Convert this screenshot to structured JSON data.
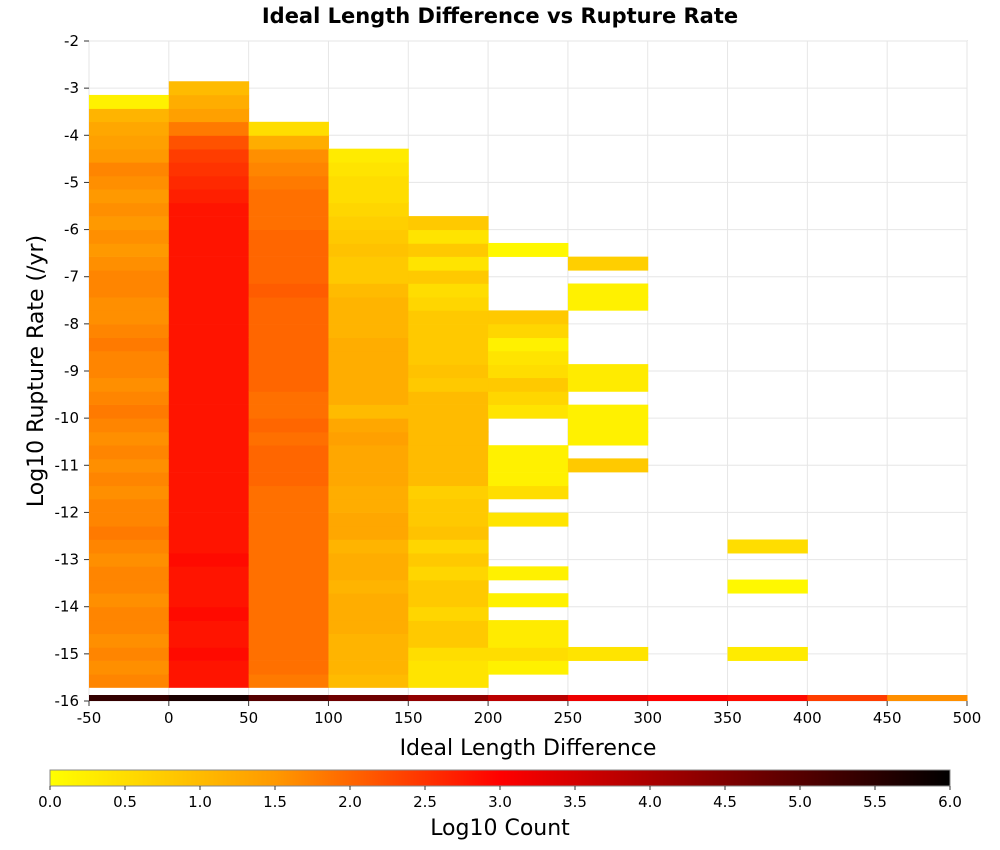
{
  "chart_data": {
    "type": "heatmap",
    "title": "Ideal Length Difference vs Rupture Rate",
    "xlabel": "Ideal Length Difference",
    "ylabel": "Log10 Rupture Rate (/yr)",
    "xlim": [
      -50,
      500
    ],
    "ylim": [
      -16,
      -2
    ],
    "x_ticks": [
      "-50",
      "0",
      "50",
      "100",
      "150",
      "200",
      "250",
      "300",
      "350",
      "400",
      "450",
      "500"
    ],
    "y_ticks": [
      "-2",
      "-3",
      "-4",
      "-5",
      "-6",
      "-7",
      "-8",
      "-9",
      "-10",
      "-11",
      "-12",
      "-13",
      "-14",
      "-15",
      "-16"
    ],
    "grid": true,
    "colorbar": {
      "label": "Log10 Count",
      "range": [
        0,
        6
      ],
      "ticks": [
        "0.0",
        "0.5",
        "1.0",
        "1.5",
        "2.0",
        "2.5",
        "3.0",
        "3.5",
        "4.0",
        "4.5",
        "5.0",
        "5.5",
        "6.0"
      ],
      "colors": [
        "#ffff00",
        "#ff9900",
        "#ff0000",
        "#800000",
        "#000000"
      ],
      "placement": "bottom"
    },
    "bin_width_x": 50,
    "bin_height_y": 0.286,
    "columns": [
      {
        "x": -50,
        "cells": [
          [
            -15.71,
            1.7
          ],
          [
            -15.43,
            1.6
          ],
          [
            -15.14,
            1.7
          ],
          [
            -14.86,
            1.6
          ],
          [
            -14.57,
            1.7
          ],
          [
            -14.29,
            1.7
          ],
          [
            -14,
            1.6
          ],
          [
            -13.71,
            1.7
          ],
          [
            -13.43,
            1.7
          ],
          [
            -13.14,
            1.6
          ],
          [
            -12.86,
            1.7
          ],
          [
            -12.57,
            1.8
          ],
          [
            -12.29,
            1.7
          ],
          [
            -12,
            1.7
          ],
          [
            -11.71,
            1.6
          ],
          [
            -11.43,
            1.7
          ],
          [
            -11.14,
            1.6
          ],
          [
            -10.86,
            1.7
          ],
          [
            -10.57,
            1.6
          ],
          [
            -10.29,
            1.7
          ],
          [
            -10,
            1.8
          ],
          [
            -9.71,
            1.7
          ],
          [
            -9.43,
            1.6
          ],
          [
            -9.14,
            1.7
          ],
          [
            -8.86,
            1.7
          ],
          [
            -8.57,
            1.8
          ],
          [
            -8.29,
            1.7
          ],
          [
            -8,
            1.6
          ],
          [
            -7.71,
            1.6
          ],
          [
            -7.43,
            1.7
          ],
          [
            -7.14,
            1.7
          ],
          [
            -6.86,
            1.6
          ],
          [
            -6.57,
            1.5
          ],
          [
            -6.29,
            1.6
          ],
          [
            -6,
            1.5
          ],
          [
            -5.71,
            1.6
          ],
          [
            -5.43,
            1.5
          ],
          [
            -5.14,
            1.6
          ],
          [
            -4.86,
            1.7
          ],
          [
            -4.57,
            1.5
          ],
          [
            -4.29,
            1.4
          ],
          [
            -4,
            1.3
          ],
          [
            -3.71,
            1.1
          ],
          [
            -3.43,
            0.2
          ]
        ]
      },
      {
        "x": 0,
        "cells": [
          [
            -15.71,
            2.8
          ],
          [
            -15.43,
            2.8
          ],
          [
            -15.14,
            2.9
          ],
          [
            -14.86,
            2.8
          ],
          [
            -14.57,
            2.8
          ],
          [
            -14.29,
            2.9
          ],
          [
            -14,
            2.8
          ],
          [
            -13.71,
            2.8
          ],
          [
            -13.43,
            2.8
          ],
          [
            -13.14,
            2.9
          ],
          [
            -12.86,
            2.8
          ],
          [
            -12.57,
            2.8
          ],
          [
            -12.29,
            2.8
          ],
          [
            -12,
            2.8
          ],
          [
            -11.71,
            2.8
          ],
          [
            -11.43,
            2.8
          ],
          [
            -11.14,
            2.8
          ],
          [
            -10.86,
            2.8
          ],
          [
            -10.57,
            2.8
          ],
          [
            -10.29,
            2.8
          ],
          [
            -10,
            2.8
          ],
          [
            -9.71,
            2.8
          ],
          [
            -9.43,
            2.8
          ],
          [
            -9.14,
            2.8
          ],
          [
            -8.86,
            2.8
          ],
          [
            -8.57,
            2.8
          ],
          [
            -8.29,
            2.8
          ],
          [
            -8,
            2.8
          ],
          [
            -7.71,
            2.8
          ],
          [
            -7.43,
            2.8
          ],
          [
            -7.14,
            2.8
          ],
          [
            -6.86,
            2.8
          ],
          [
            -6.57,
            2.8
          ],
          [
            -6.29,
            2.8
          ],
          [
            -6,
            2.8
          ],
          [
            -5.71,
            2.8
          ],
          [
            -5.43,
            2.7
          ],
          [
            -5.14,
            2.6
          ],
          [
            -4.86,
            2.5
          ],
          [
            -4.57,
            2.4
          ],
          [
            -4.29,
            2.2
          ],
          [
            -4,
            1.8
          ],
          [
            -3.71,
            1.4
          ],
          [
            -3.43,
            1.2
          ],
          [
            -3.14,
            1.0
          ]
        ]
      },
      {
        "x": 50,
        "cells": [
          [
            -15.71,
            1.8
          ],
          [
            -15.43,
            1.9
          ],
          [
            -15.14,
            1.9
          ],
          [
            -14.86,
            1.9
          ],
          [
            -14.57,
            1.9
          ],
          [
            -14.29,
            1.9
          ],
          [
            -14,
            1.9
          ],
          [
            -13.71,
            1.9
          ],
          [
            -13.43,
            1.9
          ],
          [
            -13.14,
            1.9
          ],
          [
            -12.86,
            1.9
          ],
          [
            -12.57,
            1.9
          ],
          [
            -12.29,
            1.9
          ],
          [
            -12,
            1.9
          ],
          [
            -11.71,
            1.9
          ],
          [
            -11.43,
            2.0
          ],
          [
            -11.14,
            2.0
          ],
          [
            -10.86,
            2.0
          ],
          [
            -10.57,
            1.9
          ],
          [
            -10.29,
            2.0
          ],
          [
            -10,
            1.9
          ],
          [
            -9.71,
            1.9
          ],
          [
            -9.43,
            2.0
          ],
          [
            -9.14,
            2.0
          ],
          [
            -8.86,
            2.0
          ],
          [
            -8.57,
            2.0
          ],
          [
            -8.29,
            2.0
          ],
          [
            -8,
            2.0
          ],
          [
            -7.71,
            2.0
          ],
          [
            -7.43,
            2.1
          ],
          [
            -7.14,
            2.0
          ],
          [
            -6.86,
            2.0
          ],
          [
            -6.57,
            2.0
          ],
          [
            -6.29,
            2.0
          ],
          [
            -6,
            1.9
          ],
          [
            -5.71,
            1.9
          ],
          [
            -5.43,
            1.9
          ],
          [
            -5.14,
            1.8
          ],
          [
            -4.86,
            1.7
          ],
          [
            -4.57,
            1.6
          ],
          [
            -4.29,
            1.2
          ],
          [
            -4,
            0.5
          ]
        ]
      },
      {
        "x": 100,
        "cells": [
          [
            -15.71,
            1.0
          ],
          [
            -15.43,
            1.1
          ],
          [
            -15.14,
            1.1
          ],
          [
            -14.86,
            1.1
          ],
          [
            -14.57,
            1.2
          ],
          [
            -14.29,
            1.2
          ],
          [
            -14,
            1.2
          ],
          [
            -13.71,
            1.1
          ],
          [
            -13.43,
            1.2
          ],
          [
            -13.14,
            1.2
          ],
          [
            -12.86,
            1.1
          ],
          [
            -12.57,
            1.3
          ],
          [
            -12.29,
            1.3
          ],
          [
            -12,
            1.2
          ],
          [
            -11.71,
            1.2
          ],
          [
            -11.43,
            1.3
          ],
          [
            -11.14,
            1.3
          ],
          [
            -10.86,
            1.3
          ],
          [
            -10.57,
            1.4
          ],
          [
            -10.29,
            1.3
          ],
          [
            -10,
            1.0
          ],
          [
            -9.71,
            1.2
          ],
          [
            -9.43,
            1.2
          ],
          [
            -9.14,
            1.2
          ],
          [
            -8.86,
            1.2
          ],
          [
            -8.57,
            1.2
          ],
          [
            -8.29,
            1.1
          ],
          [
            -8,
            1.1
          ],
          [
            -7.71,
            1.1
          ],
          [
            -7.43,
            1.0
          ],
          [
            -7.14,
            0.8
          ],
          [
            -6.86,
            0.8
          ],
          [
            -6.57,
            0.9
          ],
          [
            -6.29,
            0.8
          ],
          [
            -6,
            0.7
          ],
          [
            -5.71,
            0.6
          ],
          [
            -5.43,
            0.5
          ],
          [
            -5.14,
            0.5
          ],
          [
            -4.86,
            0.4
          ],
          [
            -4.57,
            0.3
          ]
        ]
      },
      {
        "x": 150,
        "cells": [
          [
            -15.71,
            0.4
          ],
          [
            -15.43,
            0.4
          ],
          [
            -15.14,
            0.5
          ],
          [
            -14.86,
            0.8
          ],
          [
            -14.57,
            0.8
          ],
          [
            -14.29,
            0.6
          ],
          [
            -14,
            0.8
          ],
          [
            -13.71,
            0.8
          ],
          [
            -13.43,
            0.6
          ],
          [
            -13.14,
            0.8
          ],
          [
            -12.86,
            0.6
          ],
          [
            -12.57,
            0.9
          ],
          [
            -12.29,
            0.8
          ],
          [
            -12,
            0.8
          ],
          [
            -11.71,
            0.7
          ],
          [
            -11.43,
            1.0
          ],
          [
            -11.14,
            1.0
          ],
          [
            -10.86,
            1.0
          ],
          [
            -10.57,
            1.0
          ],
          [
            -10.29,
            1.0
          ],
          [
            -10,
            1.0
          ],
          [
            -9.71,
            1.0
          ],
          [
            -9.43,
            0.8
          ],
          [
            -9.14,
            0.9
          ],
          [
            -8.86,
            0.8
          ],
          [
            -8.57,
            0.8
          ],
          [
            -8.29,
            0.8
          ],
          [
            -8,
            0.8
          ],
          [
            -7.71,
            0.6
          ],
          [
            -7.43,
            0.5
          ],
          [
            -7.14,
            0.8
          ],
          [
            -6.86,
            0.4
          ],
          [
            -6.57,
            0.8
          ],
          [
            -6.29,
            0.4
          ],
          [
            -6,
            0.8
          ]
        ]
      },
      {
        "x": 200,
        "cells": [
          [
            -15.43,
            0.2
          ],
          [
            -15.14,
            0.5
          ],
          [
            -14.86,
            0.3
          ],
          [
            -14.57,
            0.3
          ],
          [
            -14,
            0.2
          ],
          [
            -13.43,
            0.2
          ],
          [
            -12.29,
            0.4
          ],
          [
            -11.71,
            0.5
          ],
          [
            -11.43,
            0.2
          ],
          [
            -11.14,
            0.2
          ],
          [
            -10.86,
            0.2
          ],
          [
            -10,
            0.4
          ],
          [
            -9.71,
            0.6
          ],
          [
            -9.43,
            0.8
          ],
          [
            -9.14,
            0.5
          ],
          [
            -8.86,
            0.4
          ],
          [
            -8.57,
            0.2
          ],
          [
            -8.29,
            0.6
          ],
          [
            -8,
            0.8
          ],
          [
            -6.57,
            0.1
          ]
        ]
      },
      {
        "x": 250,
        "cells": [
          [
            -15.14,
            0.4
          ],
          [
            -11.14,
            0.8
          ],
          [
            -10.57,
            0.2
          ],
          [
            -10.29,
            0.2
          ],
          [
            -10,
            0.2
          ],
          [
            -9.43,
            0.3
          ],
          [
            -9.14,
            0.3
          ],
          [
            -7.71,
            0.2
          ],
          [
            -7.43,
            0.2
          ],
          [
            -6.86,
            0.7
          ]
        ]
      },
      {
        "x": 350,
        "cells": [
          [
            -15.14,
            0.3
          ],
          [
            -13.71,
            0.1
          ],
          [
            -12.86,
            0.5
          ]
        ]
      }
    ],
    "overflow_row": {
      "y": -16,
      "cells": [
        [
          -50,
          5.4
        ],
        [
          0,
          5.7
        ],
        [
          50,
          5.0
        ],
        [
          100,
          4.7
        ],
        [
          150,
          4.3
        ],
        [
          200,
          3.8
        ],
        [
          250,
          3.2
        ],
        [
          300,
          3.0
        ],
        [
          350,
          2.9
        ],
        [
          400,
          2.4
        ],
        [
          450,
          1.6
        ]
      ]
    }
  }
}
